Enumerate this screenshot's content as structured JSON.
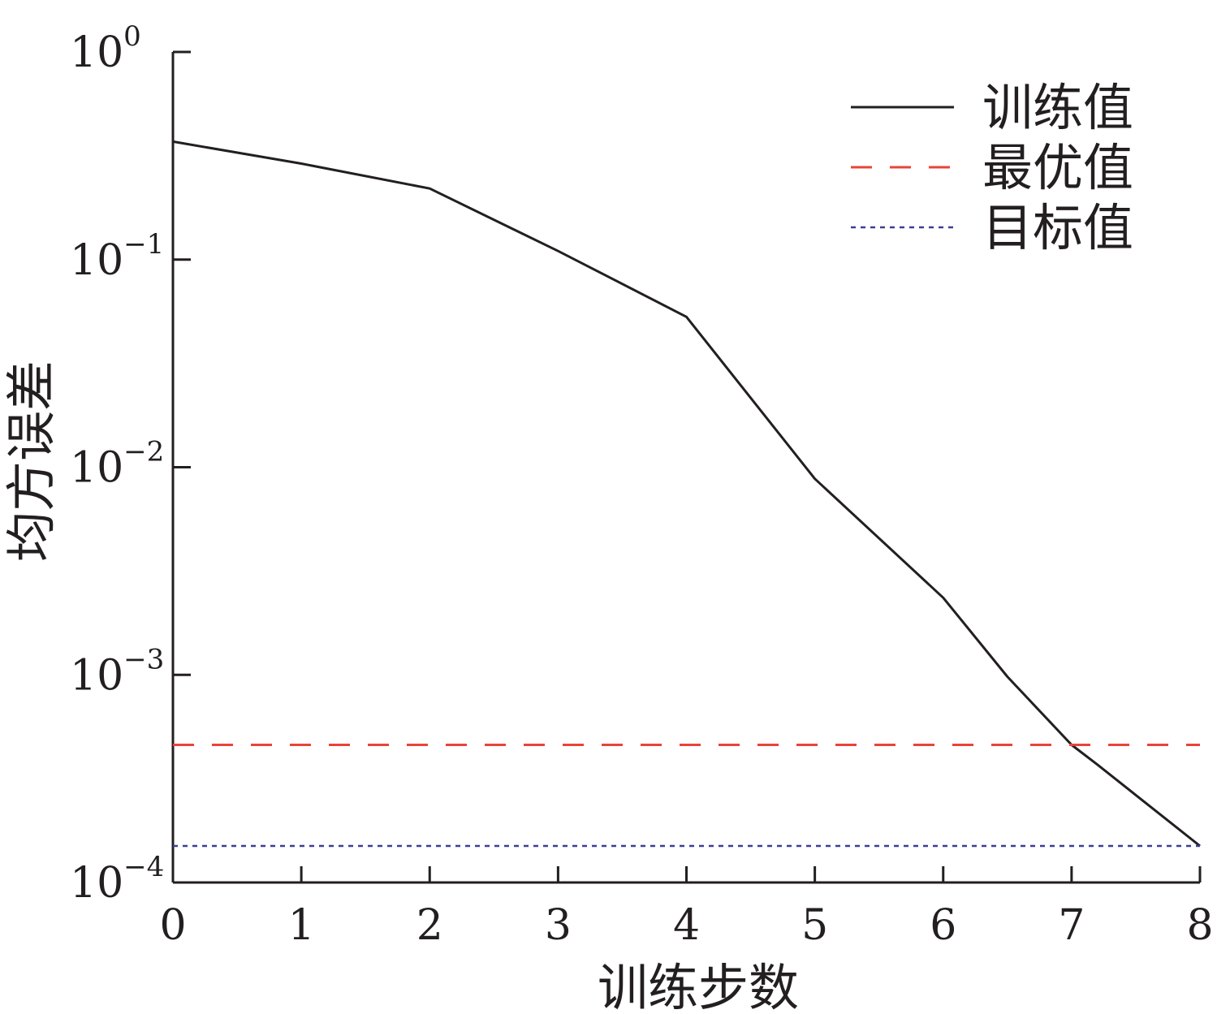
{
  "chart_data": {
    "type": "line",
    "title": "",
    "xlabel": "训练步数",
    "ylabel": "均方误差",
    "xlim": [
      0,
      8
    ],
    "ylim": [
      0.0001,
      1
    ],
    "y_scale": "log",
    "x_ticks": [
      {
        "value": 0,
        "label": "0"
      },
      {
        "value": 1,
        "label": "1"
      },
      {
        "value": 2,
        "label": "2"
      },
      {
        "value": 3,
        "label": "3"
      },
      {
        "value": 4,
        "label": "4"
      },
      {
        "value": 5,
        "label": "5"
      },
      {
        "value": 6,
        "label": "6"
      },
      {
        "value": 7,
        "label": "7"
      },
      {
        "value": 8,
        "label": "8"
      }
    ],
    "y_ticks": [
      {
        "value": 1,
        "base": "10",
        "exp": "0"
      },
      {
        "value": 0.1,
        "base": "10",
        "exp": "−1"
      },
      {
        "value": 0.01,
        "base": "10",
        "exp": "−2"
      },
      {
        "value": 0.001,
        "base": "10",
        "exp": "−3"
      },
      {
        "value": 0.0001,
        "base": "10",
        "exp": "−4"
      }
    ],
    "grid": false,
    "legend_position": "top-right",
    "series": [
      {
        "name": "训练值",
        "style": "solid",
        "color": "#231f20",
        "x": [
          0,
          1,
          2,
          3,
          4,
          5,
          6,
          6.5,
          7,
          7.2,
          8
        ],
        "y": [
          0.37,
          0.29,
          0.22,
          0.11,
          0.053,
          0.0088,
          0.00235,
          0.00098,
          0.00046,
          0.00037,
          0.00015
        ]
      },
      {
        "name": "最优值",
        "style": "dashed",
        "color": "#e8443a",
        "x": [
          0,
          8
        ],
        "y": [
          0.00046,
          0.00046
        ]
      },
      {
        "name": "目标值",
        "style": "dotted",
        "color": "#3a3f96",
        "x": [
          0,
          8
        ],
        "y": [
          0.00015,
          0.00015
        ]
      }
    ]
  }
}
